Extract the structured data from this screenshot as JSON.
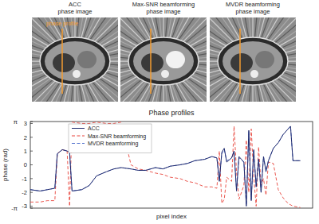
{
  "chart_data": {
    "type": "line",
    "title": "Phase profiles",
    "x_label": "pixel index",
    "y_label": "phase (rad)",
    "x": [
      0,
      4,
      7,
      10,
      11,
      13,
      15,
      16,
      17,
      21,
      24,
      27,
      31,
      34,
      37,
      41,
      44,
      47,
      51,
      54,
      57,
      61,
      64,
      67,
      71,
      74,
      76,
      77,
      78,
      79,
      80,
      82,
      83,
      84,
      85,
      87,
      88,
      89,
      90,
      91,
      92,
      93,
      94,
      95,
      96,
      97,
      99,
      101,
      103,
      105,
      106,
      107,
      110
    ],
    "xlim": [
      0,
      115
    ],
    "ylim": [
      -3.1416,
      3.1416
    ],
    "yticks": [
      {
        "value": -3.1416,
        "label": "-π"
      },
      -3,
      -2,
      -1,
      0,
      1,
      2,
      3,
      {
        "value": 3.1416,
        "label": "π"
      }
    ],
    "tick_labels": "y",
    "legend": "upper left",
    "series": [
      {
        "name": "ACC",
        "color": "#1f2a6e",
        "line_style": "solid",
        "values": [
          -1.8,
          -1.9,
          -1.8,
          -1.7,
          0.8,
          1.1,
          1.0,
          0.9,
          -1.9,
          -1.8,
          -1.5,
          -0.8,
          -0.5,
          -0.3,
          -0.2,
          -0.3,
          -0.4,
          -0.4,
          -0.2,
          -0.3,
          -0.1,
          0,
          0.1,
          0.3,
          0.4,
          0.6,
          0.5,
          -1.2,
          0.9,
          1.2,
          0.2,
          0.5,
          1.0,
          -1.9,
          0.6,
          0.2,
          -3.0,
          2.5,
          -2.6,
          1.1,
          -1.6,
          0.4,
          -2.0,
          0.6,
          -0.5,
          0.3,
          1.2,
          1.6,
          2.2,
          2.6,
          2.8,
          0.3,
          0.3
        ]
      },
      {
        "name": "Max-SNR beamforming",
        "color": "#e8433a",
        "line_style": "dashed",
        "values": [
          -2.7,
          -2.7,
          -2.6,
          -2.6,
          0.8,
          1.1,
          1.0,
          -3.0,
          3.1,
          3.0,
          3.0,
          3.1,
          3.0,
          3.0,
          3.1,
          0.0,
          -0.3,
          -0.4,
          -0.6,
          -0.7,
          -0.9,
          -1.0,
          -1.2,
          -1.3,
          -1.6,
          -1.6,
          -1.7,
          1.0,
          -2.8,
          -2.5,
          -0.9,
          -1.2,
          2.8,
          -0.5,
          -2.5,
          -1.5,
          1.8,
          -2.0,
          2.6,
          -0.8,
          -3.0,
          1.3,
          -1.5,
          -1.0,
          -2.2,
          0.2,
          0.1,
          -1.8,
          -2.4,
          -2.8,
          -2.9,
          -3.0,
          -3.1
        ]
      },
      {
        "name": "MVDR beamforming",
        "color": "#5a78d0",
        "line_style": "dashed",
        "values": [
          -1.8,
          -1.9,
          -1.8,
          -1.7,
          0.8,
          1.1,
          1.0,
          0.9,
          -1.9,
          -1.8,
          -1.5,
          -0.8,
          -0.5,
          -0.3,
          -0.2,
          -0.3,
          -0.4,
          -0.4,
          -0.2,
          -0.3,
          -0.1,
          0,
          0.1,
          0.3,
          0.4,
          0.6,
          0.5,
          -1.1,
          0.8,
          1.1,
          0.3,
          0.5,
          1.0,
          -1.8,
          0.5,
          0.2,
          -2.9,
          2.4,
          -2.5,
          1.0,
          -1.5,
          0.4,
          -1.9,
          0.6,
          -0.4,
          0.3,
          1.2,
          1.6,
          2.2,
          2.6,
          2.8,
          0.3,
          0.3
        ]
      }
    ]
  },
  "images": [
    {
      "title": [
        "ACC",
        "phase image"
      ]
    },
    {
      "title": [
        "Max-SNR beamforming",
        "phase image"
      ]
    },
    {
      "title": [
        "MVDR beamforming",
        "phase image"
      ]
    }
  ],
  "annotation": "phase profile"
}
